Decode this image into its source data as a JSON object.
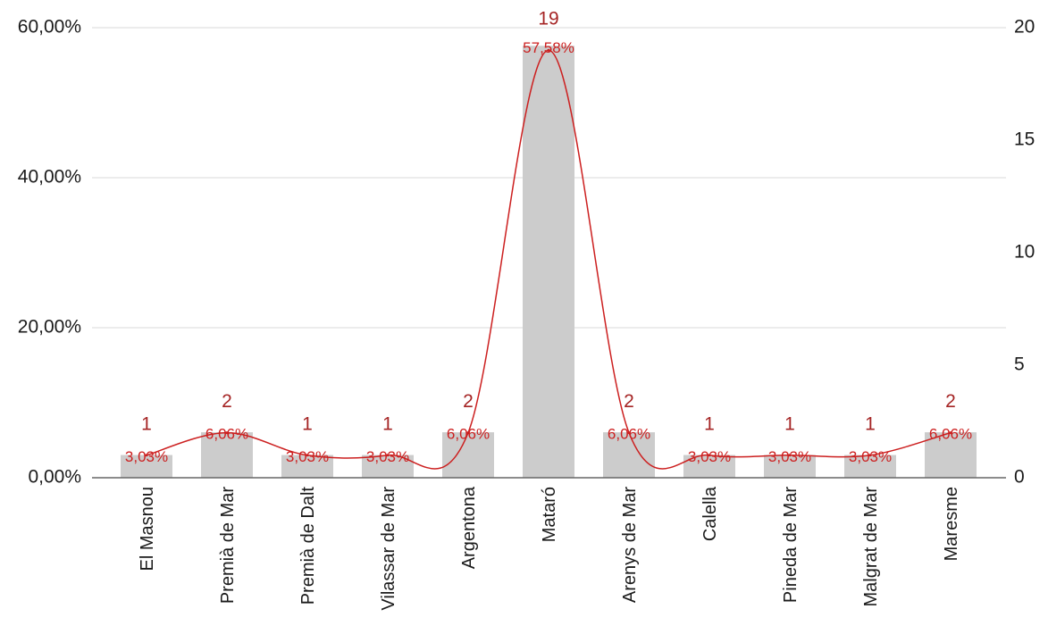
{
  "chart_data": {
    "type": "bar",
    "categories": [
      "El Masnou",
      "Premià de Mar",
      "Premià de Dalt",
      "Vilassar de Mar",
      "Argentona",
      "Mataró",
      "Arenys de Mar",
      "Calella",
      "Pineda de Mar",
      "Malgrat de Mar",
      "Maresme"
    ],
    "series": [
      {
        "type": "bar",
        "axis": "left",
        "values": [
          3.03,
          6.06,
          3.03,
          3.03,
          6.06,
          57.58,
          6.06,
          3.03,
          3.03,
          3.03,
          6.06
        ],
        "data_labels": [
          "3,03%",
          "6,06%",
          "3,03%",
          "3,03%",
          "6,06%",
          "57,58%",
          "6,06%",
          "3,03%",
          "3,03%",
          "3,03%",
          "6,06%"
        ]
      },
      {
        "type": "line",
        "axis": "right",
        "smooth": true,
        "values": [
          1,
          2,
          1,
          1,
          2,
          19,
          2,
          1,
          1,
          1,
          2
        ],
        "data_labels": [
          "1",
          "2",
          "1",
          "1",
          "2",
          "19",
          "2",
          "1",
          "1",
          "1",
          "2"
        ]
      }
    ],
    "y_left": {
      "range": [
        0,
        60
      ],
      "ticks": [
        "0,00%",
        "20,00%",
        "40,00%",
        "60,00%"
      ],
      "tick_values": [
        0,
        20,
        40,
        60
      ]
    },
    "y_right": {
      "range": [
        0,
        20
      ],
      "ticks": [
        "0",
        "5",
        "10",
        "15",
        "20"
      ],
      "tick_values": [
        0,
        5,
        10,
        15,
        20
      ]
    },
    "title": "",
    "xlabel": "",
    "ylabel": "",
    "grid": true,
    "legend": "none",
    "colors": {
      "bar": "#cccccc",
      "line": "#cc1f1f",
      "bar_label": "#cc1f1f",
      "count_label": "#a52424",
      "grid": "#d9d9d9",
      "axis": "#666666"
    }
  }
}
